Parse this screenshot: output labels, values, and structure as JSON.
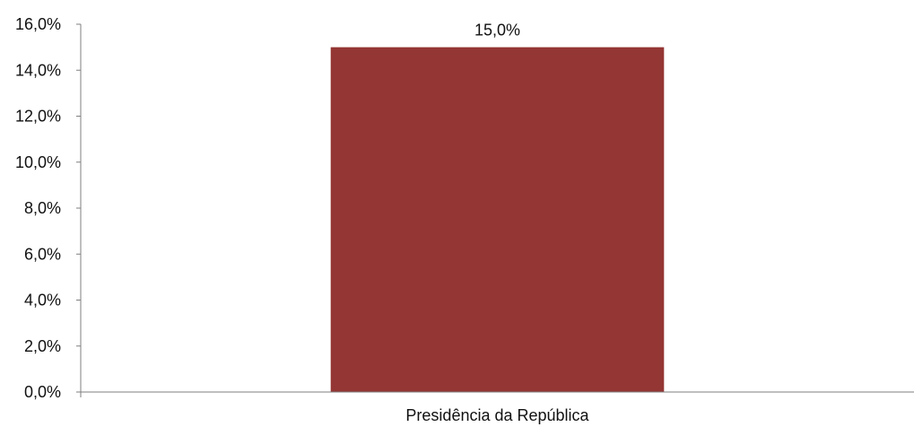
{
  "chart_data": {
    "type": "bar",
    "categories": [
      "Presidência da República"
    ],
    "values": [
      15.0
    ],
    "value_labels": [
      "15,0%"
    ],
    "title": "",
    "xlabel": "",
    "ylabel": "",
    "ylim": [
      0,
      16
    ],
    "y_ticks": [
      0,
      2,
      4,
      6,
      8,
      10,
      12,
      14,
      16
    ],
    "y_tick_labels": [
      "0,0%",
      "2,0%",
      "4,0%",
      "6,0%",
      "8,0%",
      "10,0%",
      "12,0%",
      "14,0%",
      "16,0%"
    ],
    "grid": false,
    "legend": "none",
    "bar_color": "#943634",
    "axis_color": "#7f7f7f"
  }
}
